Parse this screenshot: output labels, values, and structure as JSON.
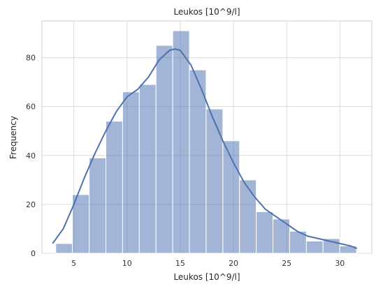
{
  "chart_data": {
    "type": "histogram",
    "title": "Leukos [10^9/l]",
    "xlabel": "Leukos [10^9/l]",
    "ylabel": "Frequency",
    "xlim": [
      2,
      33
    ],
    "ylim": [
      0,
      95
    ],
    "xticks": [
      5,
      10,
      15,
      20,
      25,
      30
    ],
    "yticks": [
      0,
      20,
      40,
      60,
      80
    ],
    "grid": true,
    "bar_color": "#4c72b0",
    "bins": [
      {
        "start": 3.3,
        "end": 4.87,
        "count": 4
      },
      {
        "start": 4.87,
        "end": 6.44,
        "count": 24
      },
      {
        "start": 6.44,
        "end": 8.01,
        "count": 39
      },
      {
        "start": 8.01,
        "end": 9.58,
        "count": 54
      },
      {
        "start": 9.58,
        "end": 11.15,
        "count": 66
      },
      {
        "start": 11.15,
        "end": 12.72,
        "count": 69
      },
      {
        "start": 12.72,
        "end": 14.29,
        "count": 85
      },
      {
        "start": 14.29,
        "end": 15.86,
        "count": 91
      },
      {
        "start": 15.86,
        "end": 17.43,
        "count": 75
      },
      {
        "start": 17.43,
        "end": 19.0,
        "count": 59
      },
      {
        "start": 19.0,
        "end": 20.57,
        "count": 46
      },
      {
        "start": 20.57,
        "end": 22.14,
        "count": 30
      },
      {
        "start": 22.14,
        "end": 23.71,
        "count": 17
      },
      {
        "start": 23.71,
        "end": 25.28,
        "count": 14
      },
      {
        "start": 25.28,
        "end": 26.85,
        "count": 9
      },
      {
        "start": 26.85,
        "end": 28.42,
        "count": 5
      },
      {
        "start": 28.42,
        "end": 29.99,
        "count": 6
      },
      {
        "start": 29.99,
        "end": 31.56,
        "count": 3
      }
    ],
    "kde": {
      "x": [
        3.0,
        4.0,
        5.0,
        6.0,
        7.0,
        8.0,
        9.0,
        10.0,
        11.0,
        12.0,
        13.0,
        14.0,
        14.5,
        15.0,
        16.0,
        17.0,
        18.0,
        19.0,
        20.0,
        21.0,
        22.0,
        23.0,
        24.0,
        25.0,
        26.0,
        27.0,
        28.0,
        29.0,
        30.0,
        31.0,
        31.6
      ],
      "y": [
        4,
        10,
        20,
        31,
        41,
        50,
        58,
        64,
        67,
        72,
        79,
        83,
        83.5,
        83,
        77,
        67,
        56,
        46,
        37,
        29,
        23,
        18,
        15,
        12,
        9,
        7,
        6,
        5,
        4,
        3,
        2
      ]
    }
  }
}
